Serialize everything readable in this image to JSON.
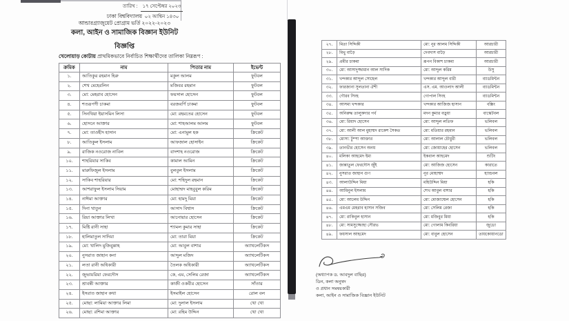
{
  "page": {
    "date_label": "তারিখ :",
    "date_top": "১৭ সেপ্টেম্বর ২০২৩",
    "date_bottom": "০২ আশ্বিন ১৪৩০",
    "org": "ঢাকা বিশ্ববিদ্যালয়",
    "program": "আন্ডারগ্র্যাজুয়েট প্রোগ্রাম ভর্তি ২০২২-২০২৩",
    "unit": "কলা, আইন ও সামাজিক বিজ্ঞান ইউনিট",
    "notice_title": "বিজ্ঞপ্তি",
    "intro_bold": "খেলোয়াড় কোটায়",
    "intro_rest": " প্রাথমিকভাবে নির্বাচিত শিক্ষার্থীদের তালিকা নিম্নরূপ :"
  },
  "tables": {
    "left": {
      "headers": [
        "ক্রমিক",
        "নাম",
        "পিতার নাম",
        "ইভেন্ট"
      ],
      "rows": [
        [
          "১.",
          "আতিকুর রহমান হিরু",
          "মকুল আলম",
          "ফুটবল"
        ],
        [
          "২.",
          "শেখ মেহেরলিন",
          "মজিবর রহমান",
          "ফুটবল"
        ],
        [
          "৩.",
          "মো: মেহরাব হোসেন",
          "ফয়সাল হোসেন",
          "ফুটবল"
        ],
        [
          "৪.",
          "শতরূপণী চাকমা",
          "বরজবর্ণি চাকমা",
          "ফুটবল"
        ],
        [
          "৫.",
          "সিনথিয়া ইয়াসমিন লিসা",
          "মো: রহমতের হোসেন",
          "ফুটবল"
        ],
        [
          "৬.",
          "হোসনে আক্তার",
          "মো: শাহআলম আলম",
          "ফুটবল"
        ],
        [
          "৭.",
          "মো: তাওহীদ হাসান",
          "মো: এনামুল হক",
          "ক্রিকেট"
        ],
        [
          "৮.",
          "আতিকুল ইসলাম",
          "আফজাল হোসাইন",
          "ক্রিকেট"
        ],
        [
          "৯.",
          "রাজিক নওরোজ নাবিল",
          "বাদশাহ নওরোজ",
          "ক্রিকেট"
        ],
        [
          "১০.",
          "শাহরিয়ার সাকিব",
          "কামাল আমিন",
          "ক্রিকেট"
        ],
        [
          "১১.",
          "মারুফিজুল ইসলাম",
          "বুলবুল ইসলাম",
          "ক্রিকেট"
        ],
        [
          "১২.",
          "সাকিব শাহরিয়ার",
          "মো: শহিদুল রহমান",
          "ক্রিকেট"
        ],
        [
          "১৩.",
          "আশরাফুল ইসলাম সিয়াম",
          "মোহাম্মদ মাহবুবুল করিম",
          "ক্রিকেট"
        ],
        [
          "১৪.",
          "নাঈমা আক্তার",
          "মো: হামদু মিয়া",
          "ক্রিকেট"
        ],
        [
          "১৫.",
          "দিনা খাতুন",
          "আসাদ বিশ্বাস",
          "ক্রিকেট"
        ],
        [
          "১৬.",
          "রিয়া আক্তার লিখা",
          "আনোয়ার হোসেন",
          "ক্রিকেট"
        ],
        [
          "১৭.",
          "মিষ্টি রানী সাহা",
          "শ্যামল কুমার সাহা",
          "ক্রিকেট"
        ],
        [
          "১৮.",
          "হালিমাতুল সাদিয়া",
          "মো: তারা মিয়া",
          "ক্রিকেট"
        ],
        [
          "১৯.",
          "মো: খালিদ মুজিবুল্লাহ",
          "মো: আবুল বাশার",
          "অ্যাথলেটিকস"
        ],
        [
          "২০.",
          "নুসরাত জাহান কনা",
          "আব্দুল মজিদ",
          "অ্যাথলেটিকস"
        ],
        [
          "২১.",
          "লতা রানী অধিকারী",
          "তৈলক অধিকারী",
          "অ্যাথলেটিকস"
        ],
        [
          "২২.",
          "জুভায়রিয়া ফেরদৌস",
          "কে, এম, সেলিম রেজা",
          "অ্যাথলেটিকস"
        ],
        [
          "২৩.",
          "শ্রাবন্তী আক্তার",
          "কাজী ওকবীর হোসেন",
          "সাঁতার"
        ],
        [
          "২৪.",
          "ইসরাত জাহান কথা",
          "ইসমাইল হোসেন",
          "রোল বল"
        ],
        [
          "২৫.",
          "মোছা: লামিয়া আক্তার লিমা",
          "মো: দুলাল ইসলাম",
          "খো খো"
        ],
        [
          "২৬.",
          "মোছা: রশিমা আক্তার",
          "মো: রহিম উদ্দিন",
          "খো খো"
        ]
      ]
    },
    "right": {
      "rows": [
        [
          "২৭.",
          "মিতা সিদ্দিকী",
          "মো: নূর আলম সিদ্দিকী",
          "আরচারী"
        ],
        [
          "২৮.",
          "মিথু বাড়ৈ",
          "দেবদাস বাড়ৈ",
          "আরচারী"
        ],
        [
          "২৯.",
          "প্রমীর চাকমা",
          "রূপন বিকাশ চাকমা",
          "আরচারী"
        ],
        [
          "৩০.",
          "মো: আসাদুজ্জামান আল সাদিক",
          "মো: আব্দুল করিম",
          "উসু"
        ],
        [
          "৩১.",
          "খন্দকার আব্দুল সোহেল",
          "খন্দকার আব্দুল বারী",
          "ব্যাডমিন্টন"
        ],
        [
          "৩২.",
          "ফারজানা সুলতানা ঐশী",
          "এস. এম. আওলাদ আলী",
          "ব্যাডমিন্টন"
        ],
        [
          "৩৩.",
          "গৌরব সিংহ",
          "গোপাল সিংহ",
          "ব্যাডমিন্টন"
        ],
        [
          "৩৪.",
          "আসমা খন্দকার",
          "খন্দকার আজিজ হাসান",
          "বক্সিং"
        ],
        [
          "৩৫.",
          "অনিরুদ্ধ তালুকদার পর্ব",
          "মদন কুমার বড়ুয়া",
          "বাস্কেটবল"
        ],
        [
          "৩৬.",
          "মো: রিয়াদ হোসেন",
          "মো: আব্দুল লতিফ",
          "ভলিবল"
        ],
        [
          "৩৭.",
          "মো: আলী আল মুহাম্মদ রাকেশ সৈকত",
          "মো: মতিয়ার রহমান",
          "ভলিবল"
        ],
        [
          "৩৮.",
          "মোসা: টুম্পা আক্তার",
          "মো: আলাল চৌধুরী",
          "ভলিবল"
        ],
        [
          "৩৯.",
          "তানভীর হোসেন অনয়",
          "মো: জোয়াহের হোসেন",
          "ভলিবল"
        ],
        [
          "৪০.",
          "মলিকা আহমেদ ইমা",
          "ইকবাল আহমেদ",
          "শুটিং"
        ],
        [
          "৪১.",
          "জান্নাতুল ফেরদৌস জুঁই",
          "মো: আজিজ হোসেন",
          "কারাতে"
        ],
        [
          "৪২.",
          "নুসরাত জাহান গুণ",
          "নূর মোহাম্মদ",
          "হ্যান্ডবল"
        ],
        [
          "৪৩.",
          "আলাউদ্দিন মিয়া",
          "মহিউদ্দিন মিয়া",
          "হকি"
        ],
        [
          "৪৪.",
          "আমিনুল ইসলাম",
          "শেখ আবুল বাশার",
          "হকি"
        ],
        [
          "৪৫.",
          "মো: আলেম উদ্দিন",
          "মো: মোজাম্মেল হোসেন",
          "হকি"
        ],
        [
          "৪৬.",
          "এমএম মেহরাব হাসান সজিব",
          "মো: সেলিম রেজা",
          "হকি"
        ],
        [
          "৪৭.",
          "মো: রাকিবুল হাসান",
          "মো: মজিবুর মিয়া",
          "হকি"
        ],
        [
          "৪৮.",
          "মো: সামসুজ্জোহা সৌরভ",
          "মো: গোলাম কিবরিয়া",
          "জুডো"
        ],
        [
          "৪৯.",
          "ফয়সাল আহমেদ",
          "মো: বাবুল হোসেন",
          "তায়কোয়ানডো"
        ]
      ]
    }
  },
  "signature": {
    "name": "(অধ্যাপক ড. আবদুল বাছির)",
    "line1": "ডিন, কলা অনুষদ",
    "line2": "ও প্রধান সমন্বয়কারী",
    "line3": "কলা, আইন ও সামাজিক বিজ্ঞান ইউনিট"
  },
  "colors": {
    "ink": "#222222",
    "divider_bar": "#1b1b1f",
    "table_border": "#8f8f94"
  }
}
